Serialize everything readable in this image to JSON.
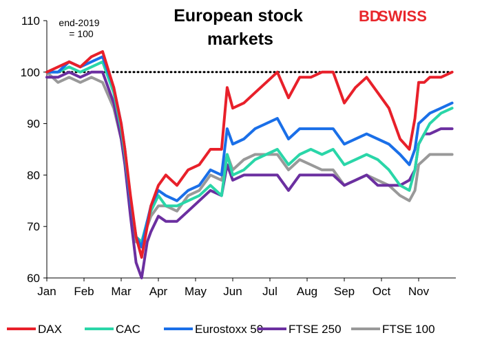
{
  "logo": {
    "part1": "BD",
    "part2": "SWISS",
    "color": "#e8262b"
  },
  "chart_data": {
    "type": "line",
    "title_line1": "European stock",
    "title_line2": "markets",
    "annotation_line1": "end-2019",
    "annotation_line2": "= 100",
    "ylim": [
      60,
      110
    ],
    "yticks": [
      60,
      70,
      80,
      90,
      100,
      110
    ],
    "xlim": [
      0,
      11
    ],
    "xtick_labels": [
      "Jan",
      "Feb",
      "Mar",
      "Apr",
      "May",
      "Jun",
      "Jul",
      "Aug",
      "Sep",
      "Oct",
      "Nov"
    ],
    "reference_line": 100,
    "x": [
      0,
      0.3,
      0.6,
      0.9,
      1.2,
      1.5,
      1.8,
      2.0,
      2.1,
      2.25,
      2.4,
      2.55,
      2.7,
      2.8,
      3.0,
      3.2,
      3.5,
      3.8,
      4.1,
      4.4,
      4.7,
      4.85,
      5.0,
      5.3,
      5.6,
      5.9,
      6.2,
      6.5,
      6.8,
      7.1,
      7.4,
      7.7,
      8.0,
      8.3,
      8.6,
      8.9,
      9.2,
      9.5,
      9.75,
      9.9,
      10.0,
      10.15,
      10.3,
      10.6,
      10.9
    ],
    "series": [
      {
        "name": "DAX",
        "color": "#e8202a",
        "values": [
          100,
          101,
          102,
          101,
          103,
          104,
          97,
          90,
          85,
          76,
          68,
          64,
          70,
          74,
          78,
          80,
          78,
          81,
          82,
          85,
          85,
          97,
          93,
          94,
          96,
          98,
          100,
          95,
          99,
          99,
          100,
          100,
          94,
          97,
          99,
          96,
          93,
          87,
          85,
          91,
          98,
          98,
          99,
          99,
          100
        ]
      },
      {
        "name": "CAC",
        "color": "#2ad6a8",
        "values": [
          100,
          100,
          101,
          100,
          101,
          102,
          96,
          89,
          84,
          75,
          68,
          67,
          71,
          73,
          76,
          74,
          74,
          75,
          76,
          78,
          76,
          84,
          80,
          81,
          83,
          84,
          85,
          82,
          84,
          85,
          84,
          85,
          82,
          83,
          84,
          83,
          81,
          78,
          77,
          81,
          86,
          88,
          90,
          92,
          93
        ]
      },
      {
        "name": "Eurostoxx 50",
        "color": "#1a6fe8",
        "values": [
          100,
          100,
          102,
          101,
          102,
          103,
          97,
          90,
          85,
          75,
          68,
          66,
          71,
          74,
          77,
          76,
          75,
          77,
          78,
          81,
          80,
          89,
          86,
          87,
          89,
          90,
          91,
          87,
          89,
          89,
          89,
          89,
          86,
          87,
          88,
          87,
          86,
          84,
          82,
          85,
          90,
          91,
          92,
          93,
          94
        ]
      },
      {
        "name": "FTSE 250",
        "color": "#6b2fa0",
        "values": [
          99,
          99,
          100,
          99,
          100,
          100,
          94,
          87,
          82,
          72,
          63,
          60,
          67,
          69,
          72,
          71,
          71,
          73,
          75,
          77,
          76,
          82,
          79,
          80,
          80,
          80,
          80,
          77,
          80,
          80,
          80,
          80,
          78,
          79,
          80,
          78,
          78,
          78,
          79,
          81,
          86,
          88,
          88,
          89,
          89
        ]
      },
      {
        "name": "FTSE 100",
        "color": "#999999",
        "values": [
          100,
          98,
          99,
          98,
          99,
          98,
          93,
          87,
          83,
          73,
          67,
          67,
          70,
          72,
          74,
          74,
          73,
          76,
          77,
          80,
          79,
          84,
          81,
          83,
          84,
          84,
          84,
          81,
          83,
          82,
          81,
          81,
          78,
          79,
          80,
          79,
          78,
          76,
          75,
          77,
          82,
          83,
          84,
          84,
          84
        ]
      }
    ]
  }
}
